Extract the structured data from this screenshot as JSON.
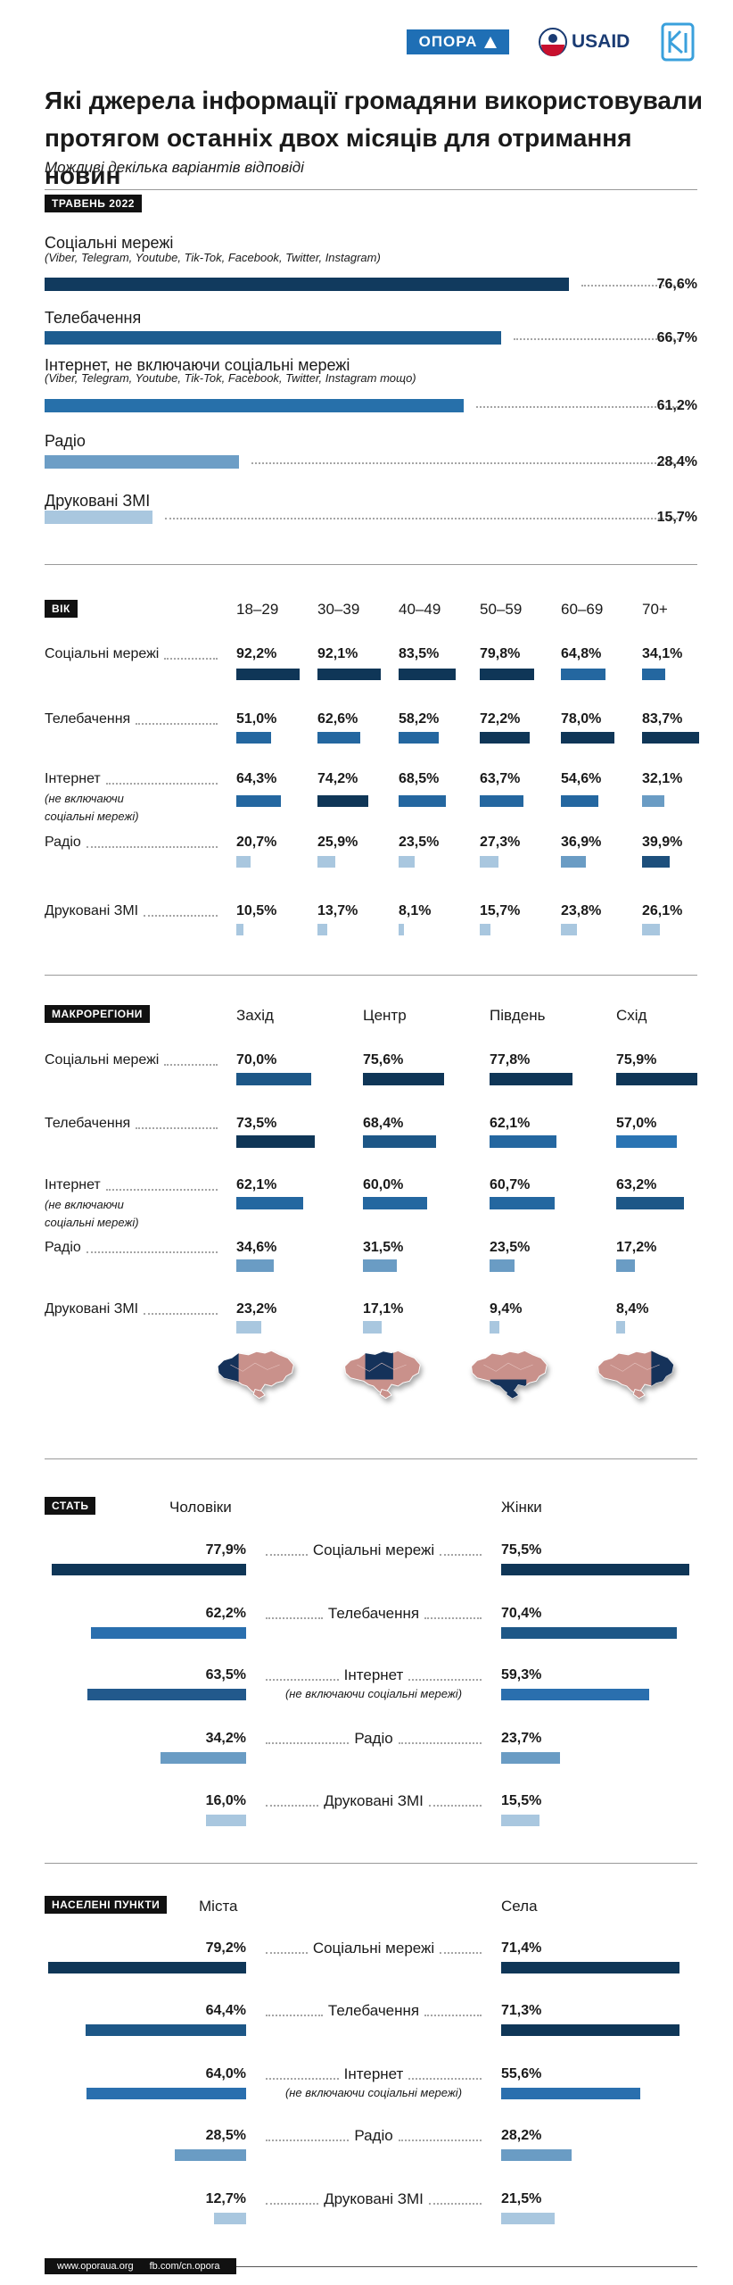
{
  "header": {
    "logos": [
      "ОПОРА",
      "USAID"
    ]
  },
  "title": "Які джерела інформації громадяни використовували протягом останніх двох місяців для отримання новин",
  "subtitle": "Можливі декілька варіантів відповіді",
  "chart_data": [
    {
      "type": "hbar",
      "title": "ТРАВЕНЬ 2022",
      "categories": [
        "Соціальні мережі",
        "Телебачення",
        "Інтернет, не включаючи соціальні мережі",
        "Радіо",
        "Друковані ЗМІ"
      ],
      "notes": [
        "(Viber, Telegram, Youtube, Tik-Tok, Facebook, Twitter, Instagram)",
        null,
        "(Viber, Telegram, Youtube, Tik-Tok, Facebook, Twitter, Instagram тощо)",
        null,
        null
      ],
      "values": [
        76.6,
        66.7,
        61.2,
        28.4,
        15.7
      ],
      "value_labels": [
        "76,6%",
        "66,7%",
        "61,2%",
        "28,4%",
        "15,7%"
      ],
      "colors": [
        "#113a5e",
        "#1d5c8f",
        "#2770aa",
        "#6d9ec6",
        "#a9c7df"
      ]
    },
    {
      "type": "columns",
      "title": "ВІК",
      "categories": [
        "Соціальні мережі",
        "Телебачення",
        "Інтернет",
        "Радіо",
        "Друковані ЗМІ"
      ],
      "notes": [
        null,
        null,
        "(не включаючи соціальні мережі)",
        null,
        null
      ],
      "series": [
        {
          "name": "18–29",
          "values": [
            92.2,
            51.0,
            64.3,
            20.7,
            10.5
          ],
          "value_labels": [
            "92,2%",
            "51,0%",
            "64,3%",
            "20,7%",
            "10,5%"
          ],
          "colors": [
            "#0f3657",
            "#2467a0",
            "#2467a0",
            "#a9c7df",
            "#a9c7df"
          ]
        },
        {
          "name": "30–39",
          "values": [
            92.1,
            62.6,
            74.2,
            25.9,
            13.7
          ],
          "value_labels": [
            "92,1%",
            "62,6%",
            "74,2%",
            "25,9%",
            "13,7%"
          ],
          "colors": [
            "#0f3657",
            "#2467a0",
            "#0f3657",
            "#a9c7df",
            "#a9c7df"
          ]
        },
        {
          "name": "40–49",
          "values": [
            83.5,
            58.2,
            68.5,
            23.5,
            8.1
          ],
          "value_labels": [
            "83,5%",
            "58,2%",
            "68,5%",
            "23,5%",
            "8,1%"
          ],
          "colors": [
            "#0f3657",
            "#2467a0",
            "#2467a0",
            "#a9c7df",
            "#a9c7df"
          ]
        },
        {
          "name": "50–59",
          "values": [
            79.8,
            72.2,
            63.7,
            27.3,
            15.7
          ],
          "value_labels": [
            "79,8%",
            "72,2%",
            "63,7%",
            "27,3%",
            "15,7%"
          ],
          "colors": [
            "#0f3657",
            "#0f3657",
            "#2467a0",
            "#a9c7df",
            "#a9c7df"
          ]
        },
        {
          "name": "60–69",
          "values": [
            64.8,
            78.0,
            54.6,
            36.9,
            23.8
          ],
          "value_labels": [
            "64,8%",
            "78,0%",
            "54,6%",
            "36,9%",
            "23,8%"
          ],
          "colors": [
            "#2467a0",
            "#0f3657",
            "#2467a0",
            "#6a9cc4",
            "#a9c7df"
          ]
        },
        {
          "name": "70+",
          "values": [
            34.1,
            83.7,
            32.1,
            39.9,
            26.1
          ],
          "value_labels": [
            "34,1%",
            "83,7%",
            "32,1%",
            "39,9%",
            "26,1%"
          ],
          "colors": [
            "#2467a0",
            "#0f3657",
            "#6a9cc4",
            "#1d4f7c",
            "#a9c7df"
          ]
        }
      ]
    },
    {
      "type": "columns",
      "title": "МАКРОРЕГІОНИ",
      "categories": [
        "Соціальні мережі",
        "Телебачення",
        "Інтернет",
        "Радіо",
        "Друковані ЗМІ"
      ],
      "notes": [
        null,
        null,
        "(не включаючи соціальні мережі)",
        null,
        null
      ],
      "series": [
        {
          "name": "Захід",
          "values": [
            70.0,
            73.5,
            62.1,
            34.6,
            23.2
          ],
          "value_labels": [
            "70,0%",
            "73,5%",
            "62,1%",
            "34,6%",
            "23,2%"
          ],
          "colors": [
            "#1d5787",
            "#0f3657",
            "#2467a0",
            "#6a9cc4",
            "#a9c7df"
          ]
        },
        {
          "name": "Центр",
          "values": [
            75.6,
            68.4,
            60.0,
            31.5,
            17.1
          ],
          "value_labels": [
            "75,6%",
            "68,4%",
            "60,0%",
            "31,5%",
            "17,1%"
          ],
          "colors": [
            "#0f3657",
            "#1d5787",
            "#2467a0",
            "#6a9cc4",
            "#a9c7df"
          ]
        },
        {
          "name": "Південь",
          "values": [
            77.8,
            62.1,
            60.7,
            23.5,
            9.4
          ],
          "value_labels": [
            "77,8%",
            "62,1%",
            "60,7%",
            "23,5%",
            "9,4%"
          ],
          "colors": [
            "#0f3657",
            "#2467a0",
            "#2467a0",
            "#6a9cc4",
            "#a9c7df"
          ]
        },
        {
          "name": "Схід",
          "values": [
            75.9,
            57.0,
            63.2,
            17.2,
            8.4
          ],
          "value_labels": [
            "75,9%",
            "57,0%",
            "63,2%",
            "17,2%",
            "8,4%"
          ],
          "colors": [
            "#0f3657",
            "#2a74b3",
            "#1d5787",
            "#6a9cc4",
            "#a9c7df"
          ]
        }
      ]
    },
    {
      "type": "diverging",
      "title": "СТАТЬ",
      "categories": [
        "Соціальні мережі",
        "Телебачення",
        "Інтернет",
        "Радіо",
        "Друковані ЗМІ"
      ],
      "notes": [
        null,
        null,
        "(не включаючи соціальні мережі)",
        null,
        null
      ],
      "series": [
        {
          "name": "Чоловіки",
          "values": [
            77.9,
            62.2,
            63.5,
            34.2,
            16.0
          ],
          "value_labels": [
            "77,9%",
            "62,2%",
            "63,5%",
            "34,2%",
            "16,0%"
          ],
          "colors": [
            "#0f3657",
            "#2a6fae",
            "#22598c",
            "#6a9cc4",
            "#a9c7df"
          ]
        },
        {
          "name": "Жінки",
          "values": [
            75.5,
            70.4,
            59.3,
            23.7,
            15.5
          ],
          "value_labels": [
            "75,5%",
            "70,4%",
            "59,3%",
            "23,7%",
            "15,5%"
          ],
          "colors": [
            "#0f3657",
            "#1d5787",
            "#2a6fae",
            "#6a9cc4",
            "#a9c7df"
          ]
        }
      ]
    },
    {
      "type": "diverging",
      "title": "НАСЕЛЕНІ ПУНКТИ",
      "categories": [
        "Соціальні мережі",
        "Телебачення",
        "Інтернет",
        "Радіо",
        "Друковані ЗМІ"
      ],
      "notes": [
        null,
        null,
        "(не включаючи соціальні мережі)",
        null,
        null
      ],
      "series": [
        {
          "name": "Міста",
          "values": [
            79.2,
            64.4,
            64.0,
            28.5,
            12.7
          ],
          "value_labels": [
            "79,2%",
            "64,4%",
            "64,0%",
            "28,5%",
            "12,7%"
          ],
          "colors": [
            "#0f3657",
            "#1d5787",
            "#2a6fae",
            "#6a9cc4",
            "#a9c7df"
          ]
        },
        {
          "name": "Села",
          "values": [
            71.4,
            71.3,
            55.6,
            28.2,
            21.5
          ],
          "value_labels": [
            "71,4%",
            "71,3%",
            "55,6%",
            "28,2%",
            "21,5%"
          ],
          "colors": [
            "#0f3657",
            "#0f3657",
            "#2a6fae",
            "#6a9cc4",
            "#a9c7df"
          ]
        }
      ]
    }
  ],
  "footer": [
    "www.oporaua.org",
    "fb.com/cn.opora"
  ]
}
